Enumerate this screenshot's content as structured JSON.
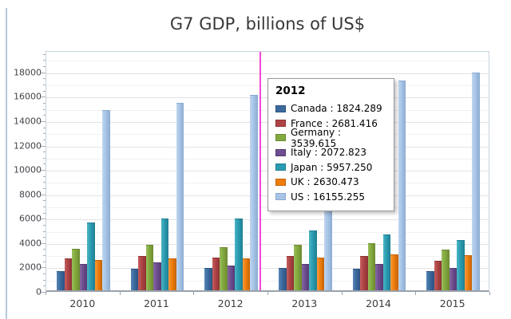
{
  "page": {
    "title": "G7 GDP, billions of US$"
  },
  "chart_data": {
    "type": "bar",
    "title": "G7 GDP, billions of US$",
    "categories": [
      "2010",
      "2011",
      "2012",
      "2013",
      "2014",
      "2015"
    ],
    "series": [
      {
        "name": "Canada",
        "color": "#3c6a9d",
        "color_light": "#5585b8",
        "color_dark": "#2d5280",
        "values": [
          1610,
          1790,
          1824.289,
          1850,
          1810,
          1570
        ]
      },
      {
        "name": "France",
        "color": "#ae4345",
        "color_light": "#c4605f",
        "color_dark": "#8c3334",
        "values": [
          2650,
          2850,
          2681.416,
          2820,
          2840,
          2450
        ]
      },
      {
        "name": "Germany",
        "color": "#82a93e",
        "color_light": "#9abe5b",
        "color_dark": "#6b8a31",
        "values": [
          3430,
          3770,
          3539.615,
          3760,
          3890,
          3360
        ]
      },
      {
        "name": "Italy",
        "color": "#6e4d90",
        "color_light": "#86689f",
        "color_dark": "#563a72",
        "values": [
          2150,
          2300,
          2072.823,
          2170,
          2180,
          1850
        ]
      },
      {
        "name": "Japan",
        "color": "#2b9cb1",
        "color_light": "#4cb4c4",
        "color_dark": "#1f7e92",
        "values": [
          5600,
          5930,
          5957.25,
          4930,
          4600,
          4150
        ]
      },
      {
        "name": "UK",
        "color": "#ee7d0c",
        "color_light": "#f79b3a",
        "color_dark": "#c26408",
        "values": [
          2490,
          2650,
          2630.473,
          2700,
          3000,
          2900
        ]
      },
      {
        "name": "US",
        "color": "#a7c4e6",
        "color_light": "#c0d6ee",
        "color_dark": "#8cabd0",
        "values": [
          14960,
          15510,
          16155.255,
          16690,
          17400,
          18050
        ]
      }
    ],
    "ylim": [
      0,
      19750
    ],
    "ytick_step": 2000,
    "ytick_minor_step": 500,
    "ytick_labels": [
      "0",
      "2000",
      "4000",
      "6000",
      "8000",
      "10000",
      "12000",
      "14000",
      "16000",
      "18000"
    ],
    "grid": {
      "horizontal_minor_step": 1000,
      "horizontal_major_step": 2000,
      "vertical": false
    },
    "legend_position": "none"
  },
  "tooltip": {
    "header": "2012",
    "rows": [
      {
        "series": "Canada",
        "text": "Canada : 1824.289",
        "color": "#3c6a9d",
        "border": "#2d5280"
      },
      {
        "series": "France",
        "text": "France : 2681.416",
        "color": "#ae4345",
        "border": "#8c3334"
      },
      {
        "series": "Germany",
        "text": "Germany : 3539.615",
        "color": "#82a93e",
        "border": "#6b8a31"
      },
      {
        "series": "Italy",
        "text": "Italy : 2072.823",
        "color": "#6e4d90",
        "border": "#563a72"
      },
      {
        "series": "Japan",
        "text": "Japan : 5957.250",
        "color": "#2b9cb1",
        "border": "#1f7e92"
      },
      {
        "series": "UK",
        "text": "UK : 2630.473",
        "color": "#ee7d0c",
        "border": "#c26408"
      },
      {
        "series": "US",
        "text": "US : 16155.255",
        "color": "#a7c4e6",
        "border": "#8cabd0"
      }
    ]
  },
  "crosshair": {
    "color": "#ee3fd6",
    "at_category": "2012"
  },
  "colors": {
    "grid_minor": "#f1f1f3",
    "grid_major": "#e3e3e8",
    "plot_border": "#c9d3dd",
    "axis_line": "#9aa2ab",
    "title_text": "#383838",
    "tick_label": "#42434a",
    "edge_line": "#b3cade"
  }
}
